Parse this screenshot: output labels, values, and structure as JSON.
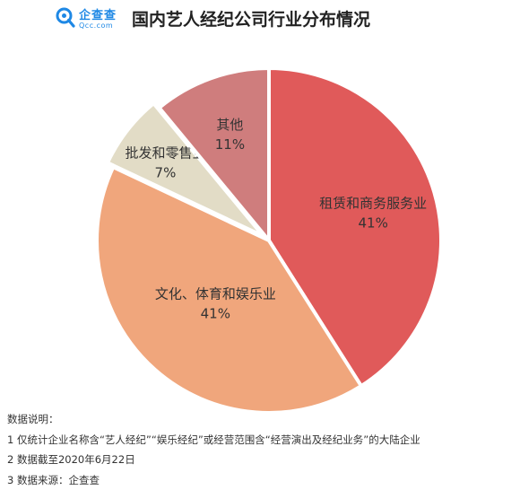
{
  "header": {
    "logo_text": "企查查",
    "logo_domain": "Qcc.com",
    "title": "国内艺人经纪公司行业分布情况"
  },
  "chart_data": {
    "type": "pie",
    "title": "国内艺人经纪公司行业分布情况",
    "slices": [
      {
        "name": "租赁和商务服务业",
        "value": 41,
        "label": "41%",
        "color": "#e05a5a"
      },
      {
        "name": "文化、体育和娱乐业",
        "value": 41,
        "label": "41%",
        "color": "#f0a67c"
      },
      {
        "name": "批发和零售业",
        "value": 7,
        "label": "7%",
        "color": "#e2dcc6"
      },
      {
        "name": "其他",
        "value": 11,
        "label": "11%",
        "color": "#cf7d7d"
      }
    ],
    "legend": "none"
  },
  "notes": {
    "heading": "数据说明：",
    "items": [
      "1 仅统计企业名称含“艺人经纪”“娱乐经纪”或经营范围含“经营演出及经纪业务”的大陆企业",
      "2 数据截至2020年6月22日",
      "3 数据来源：企查查"
    ]
  }
}
